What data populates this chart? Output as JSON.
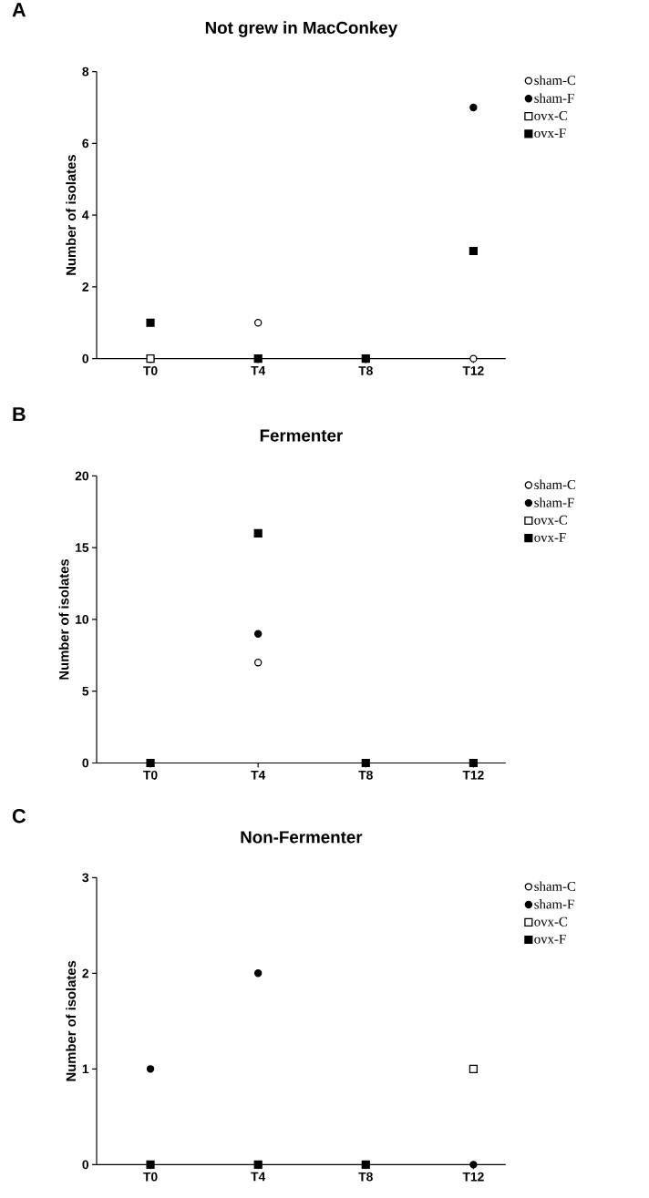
{
  "chart_data": [
    {
      "type": "scatter",
      "title": "Not grew in MacConkey",
      "ylabel": "Number of isolates",
      "annotations": [
        "A"
      ],
      "categories": [
        "T0",
        "T4",
        "T8",
        "T12"
      ],
      "ylim": [
        0,
        8
      ],
      "yticks": [
        0,
        2,
        4,
        6,
        8
      ],
      "legend": "right",
      "grid": false,
      "series": [
        {
          "name": "sham-C",
          "color": "#ffffff",
          "marker": "circle",
          "values": [
            null,
            1,
            null,
            0
          ]
        },
        {
          "name": "sham-F",
          "color": "#000000",
          "marker": "circle",
          "values": [
            null,
            null,
            null,
            7
          ]
        },
        {
          "name": "ovx-C",
          "color": "#ffffff",
          "marker": "square",
          "values": [
            0,
            null,
            null,
            null
          ]
        },
        {
          "name": "ovx-F",
          "color": "#000000",
          "marker": "square",
          "values": [
            1,
            0,
            0,
            3
          ]
        }
      ]
    },
    {
      "type": "scatter",
      "title": "Fermenter",
      "ylabel": "Number of isolates",
      "annotations": [
        "B"
      ],
      "categories": [
        "T0",
        "T4",
        "T8",
        "T12"
      ],
      "ylim": [
        0,
        20
      ],
      "yticks": [
        0,
        5,
        10,
        15,
        20
      ],
      "legend": "right",
      "grid": false,
      "series": [
        {
          "name": "sham-C",
          "color": "#ffffff",
          "marker": "circle",
          "values": [
            null,
            7,
            null,
            null
          ]
        },
        {
          "name": "sham-F",
          "color": "#000000",
          "marker": "circle",
          "values": [
            null,
            9,
            null,
            null
          ]
        },
        {
          "name": "ovx-C",
          "color": "#ffffff",
          "marker": "square",
          "values": [
            null,
            null,
            null,
            null
          ]
        },
        {
          "name": "ovx-F",
          "color": "#000000",
          "marker": "square",
          "values": [
            0,
            16,
            0,
            0
          ]
        }
      ]
    },
    {
      "type": "scatter",
      "title": "Non-Fermenter",
      "ylabel": "Number of isolates",
      "annotations": [
        "C"
      ],
      "categories": [
        "T0",
        "T4",
        "T8",
        "T12"
      ],
      "ylim": [
        0,
        3
      ],
      "yticks": [
        0,
        1,
        2,
        3
      ],
      "legend": "right",
      "grid": false,
      "series": [
        {
          "name": "sham-C",
          "color": "#ffffff",
          "marker": "circle",
          "values": [
            null,
            null,
            null,
            null
          ]
        },
        {
          "name": "sham-F",
          "color": "#000000",
          "marker": "circle",
          "values": [
            1,
            2,
            null,
            0
          ]
        },
        {
          "name": "ovx-C",
          "color": "#ffffff",
          "marker": "square",
          "values": [
            null,
            null,
            null,
            1
          ]
        },
        {
          "name": "ovx-F",
          "color": "#000000",
          "marker": "square",
          "values": [
            0,
            0,
            0,
            null
          ]
        }
      ]
    }
  ]
}
